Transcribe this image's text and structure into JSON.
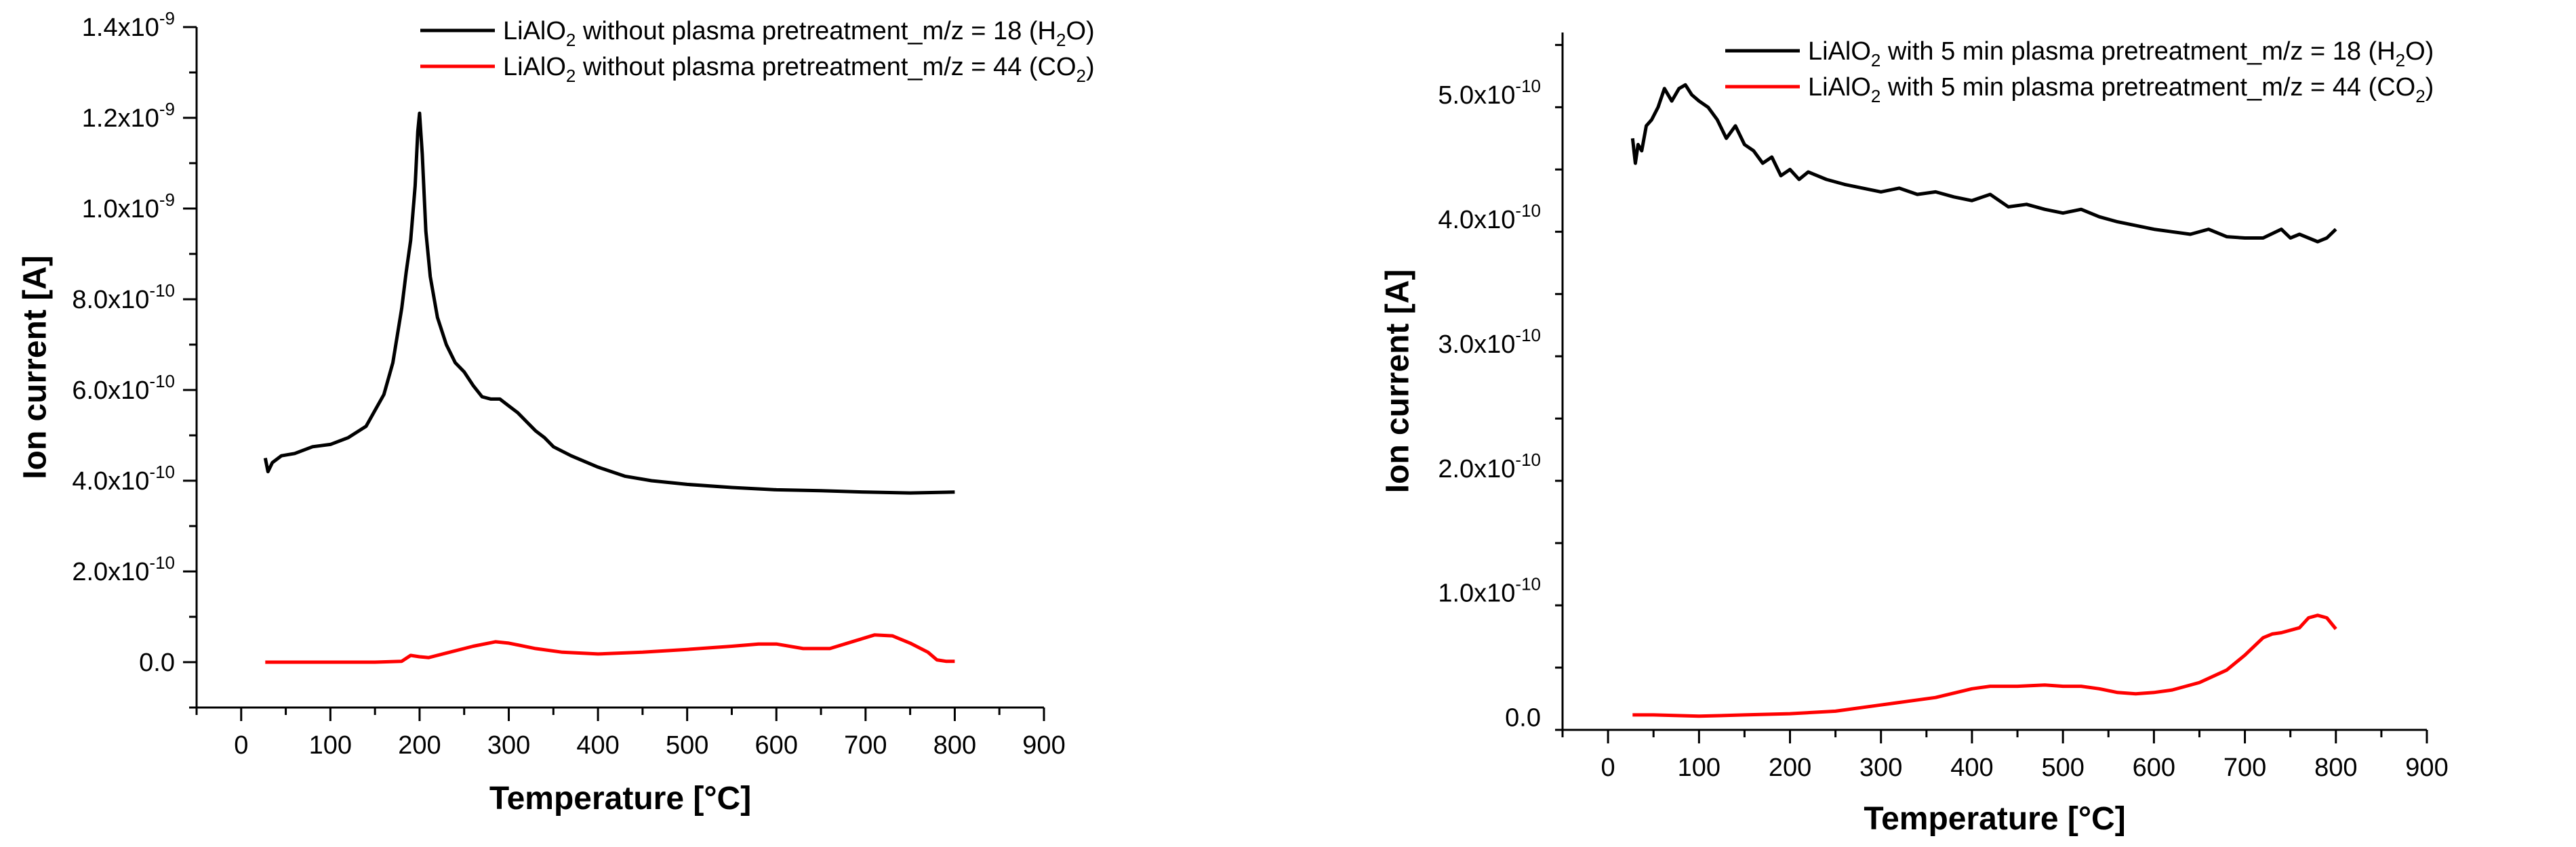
{
  "colors": {
    "h2o": "#000000",
    "co2": "#ff0000"
  },
  "chart_data": [
    {
      "type": "line",
      "xlabel": "Temperature [°C]",
      "ylabel": "Ion current [A]",
      "xlim": [
        -50,
        900
      ],
      "ylim": [
        -1e-10,
        1.4e-09
      ],
      "x_ticks": [
        0,
        100,
        200,
        300,
        400,
        500,
        600,
        700,
        800,
        900
      ],
      "y_ticks": [
        {
          "value": 0,
          "base": "0.0",
          "exp": ""
        },
        {
          "value": 2e-10,
          "base": "2.0x10",
          "exp": "-10"
        },
        {
          "value": 4e-10,
          "base": "4.0x10",
          "exp": "-10"
        },
        {
          "value": 6e-10,
          "base": "6.0x10",
          "exp": "-10"
        },
        {
          "value": 8e-10,
          "base": "8.0x10",
          "exp": "-10"
        },
        {
          "value": 1e-09,
          "base": "1.0x10",
          "exp": "-9"
        },
        {
          "value": 1.2e-09,
          "base": "1.2x10",
          "exp": "-9"
        },
        {
          "value": 1.4e-09,
          "base": "1.4x10",
          "exp": "-9"
        }
      ],
      "series": [
        {
          "name": "LiAlO2 without plasma pretreatment_m/z = 18 (H2O)",
          "legend": {
            "pre": "LiAlO",
            "sub1": "2",
            "mid": " without plasma pretreatment_m/z = 18 (H",
            "sub2": "2",
            "post": "O)"
          },
          "color": "#000000",
          "x": [
            27,
            30,
            35,
            45,
            60,
            80,
            100,
            120,
            140,
            160,
            170,
            180,
            185,
            190,
            195,
            198,
            200,
            203,
            207,
            212,
            220,
            230,
            240,
            250,
            260,
            270,
            280,
            290,
            300,
            310,
            320,
            330,
            340,
            350,
            370,
            400,
            430,
            460,
            500,
            550,
            600,
            650,
            700,
            750,
            800
          ],
          "values": [
            4.5e-10,
            4.2e-10,
            4.4e-10,
            4.55e-10,
            4.6e-10,
            4.75e-10,
            4.8e-10,
            4.95e-10,
            5.2e-10,
            5.9e-10,
            6.6e-10,
            7.8e-10,
            8.6e-10,
            9.3e-10,
            1.05e-09,
            1.17e-09,
            1.21e-09,
            1.12e-09,
            9.5e-10,
            8.5e-10,
            7.6e-10,
            7e-10,
            6.6e-10,
            6.4e-10,
            6.1e-10,
            5.85e-10,
            5.8e-10,
            5.8e-10,
            5.65e-10,
            5.5e-10,
            5.3e-10,
            5.1e-10,
            4.95e-10,
            4.75e-10,
            4.55e-10,
            4.3e-10,
            4.1e-10,
            4e-10,
            3.92e-10,
            3.85e-10,
            3.8e-10,
            3.78e-10,
            3.75e-10,
            3.73e-10,
            3.75e-10
          ]
        },
        {
          "name": "LiAlO2 without plasma pretreatment_m/z = 44 (CO2)",
          "legend": {
            "pre": "LiAlO",
            "sub1": "2",
            "mid": " without plasma pretreatment_m/z = 44 (CO",
            "sub2": "2",
            "post": ")"
          },
          "color": "#ff0000",
          "x": [
            27,
            50,
            100,
            150,
            180,
            190,
            200,
            210,
            230,
            260,
            285,
            300,
            330,
            360,
            400,
            450,
            500,
            550,
            580,
            600,
            630,
            660,
            690,
            710,
            730,
            750,
            770,
            780,
            790,
            800
          ],
          "values": [
            0,
            0,
            0,
            0,
            2e-12,
            1.5e-11,
            1.2e-11,
            1e-11,
            2e-11,
            3.5e-11,
            4.5e-11,
            4.2e-11,
            3e-11,
            2.2e-11,
            1.8e-11,
            2.2e-11,
            2.8e-11,
            3.5e-11,
            4e-11,
            4e-11,
            3e-11,
            3e-11,
            4.8e-11,
            6e-11,
            5.8e-11,
            4.2e-11,
            2.2e-11,
            5e-12,
            2e-12,
            2e-12
          ]
        }
      ]
    },
    {
      "type": "line",
      "xlabel": "Temperature [°C]",
      "ylabel": "Ion current [A]",
      "xlim": [
        -50,
        900
      ],
      "ylim": [
        -1e-11,
        5.5e-10
      ],
      "x_ticks": [
        0,
        100,
        200,
        300,
        400,
        500,
        600,
        700,
        800,
        900
      ],
      "y_ticks": [
        {
          "value": 0,
          "base": "0.0",
          "exp": ""
        },
        {
          "value": 1e-10,
          "base": "1.0x10",
          "exp": "-10"
        },
        {
          "value": 2e-10,
          "base": "2.0x10",
          "exp": "-10"
        },
        {
          "value": 3e-10,
          "base": "3.0x10",
          "exp": "-10"
        },
        {
          "value": 4e-10,
          "base": "4.0x10",
          "exp": "-10"
        },
        {
          "value": 5e-10,
          "base": "5.0x10",
          "exp": "-10"
        }
      ],
      "series": [
        {
          "name": "LiAlO2 with 5 min plasma pretreatment_m/z = 18 (H2O)",
          "legend": {
            "pre": "LiAlO",
            "sub1": "2",
            "mid": " with 5 min plasma pretreatment_m/z = 18 (H",
            "sub2": "2",
            "post": "O)"
          },
          "color": "#000000",
          "x": [
            27,
            30,
            33,
            37,
            42,
            48,
            55,
            62,
            70,
            78,
            85,
            92,
            100,
            110,
            120,
            130,
            140,
            150,
            160,
            170,
            180,
            190,
            200,
            210,
            220,
            240,
            260,
            280,
            300,
            320,
            340,
            360,
            380,
            400,
            420,
            440,
            460,
            480,
            500,
            520,
            540,
            560,
            580,
            600,
            620,
            640,
            660,
            680,
            700,
            720,
            740,
            750,
            760,
            780,
            790,
            800
          ],
          "values": [
            4.65e-10,
            4.45e-10,
            4.6e-10,
            4.55e-10,
            4.75e-10,
            4.8e-10,
            4.9e-10,
            5.05e-10,
            4.95e-10,
            5.05e-10,
            5.08e-10,
            5e-10,
            4.95e-10,
            4.9e-10,
            4.8e-10,
            4.65e-10,
            4.75e-10,
            4.6e-10,
            4.55e-10,
            4.45e-10,
            4.5e-10,
            4.35e-10,
            4.4e-10,
            4.32e-10,
            4.38e-10,
            4.32e-10,
            4.28e-10,
            4.25e-10,
            4.22e-10,
            4.25e-10,
            4.2e-10,
            4.22e-10,
            4.18e-10,
            4.15e-10,
            4.2e-10,
            4.1e-10,
            4.12e-10,
            4.08e-10,
            4.05e-10,
            4.08e-10,
            4.02e-10,
            3.98e-10,
            3.95e-10,
            3.92e-10,
            3.9e-10,
            3.88e-10,
            3.92e-10,
            3.86e-10,
            3.85e-10,
            3.85e-10,
            3.92e-10,
            3.85e-10,
            3.88e-10,
            3.82e-10,
            3.85e-10,
            3.92e-10
          ]
        },
        {
          "name": "LiAlO2 with 5 min plasma pretreatment_m/z = 44 (CO2)",
          "legend": {
            "pre": "LiAlO",
            "sub1": "2",
            "mid": " with 5 min plasma pretreatment_m/z = 44 (CO",
            "sub2": "2",
            "post": ")"
          },
          "color": "#ff0000",
          "x": [
            27,
            50,
            100,
            150,
            200,
            250,
            300,
            330,
            360,
            400,
            420,
            450,
            480,
            500,
            520,
            540,
            560,
            580,
            600,
            620,
            650,
            680,
            700,
            720,
            730,
            740,
            760,
            770,
            780,
            790,
            800
          ],
          "values": [
            2e-12,
            2e-12,
            1e-12,
            2e-12,
            3e-12,
            5e-12,
            1e-11,
            1.3e-11,
            1.6e-11,
            2.3e-11,
            2.5e-11,
            2.5e-11,
            2.6e-11,
            2.5e-11,
            2.5e-11,
            2.3e-11,
            2e-11,
            1.9e-11,
            2e-11,
            2.2e-11,
            2.8e-11,
            3.8e-11,
            5e-11,
            6.4e-11,
            6.7e-11,
            6.8e-11,
            7.2e-11,
            8e-11,
            8.2e-11,
            8e-11,
            7.1e-11
          ]
        }
      ]
    }
  ]
}
